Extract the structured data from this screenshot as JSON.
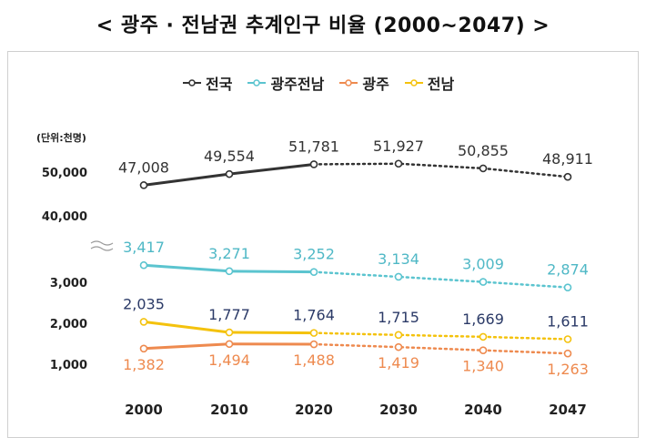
{
  "chart_data": {
    "type": "line",
    "title": "< 광주 · 전남권 추계인구 비율 (2000~2047) >",
    "unit_label": "(단위:천명)",
    "categories": [
      "2000",
      "2010",
      "2020",
      "2030",
      "2040",
      "2047"
    ],
    "y_ticks": [
      "50,000",
      "40,000",
      "3,000",
      "2,000",
      "1,000"
    ],
    "axis_break": true,
    "projection_from": "2020",
    "legend_position": "top",
    "grid": false,
    "series": [
      {
        "name": "전국",
        "color": "#333333",
        "label_color": "#333333",
        "values": [
          47008,
          49554,
          51781,
          51927,
          50855,
          48911
        ],
        "labels": [
          "47,008",
          "49,554",
          "51,781",
          "51,927",
          "50,855",
          "48,911"
        ],
        "label_side": "above"
      },
      {
        "name": "광주전남",
        "color": "#5bc4cf",
        "label_color": "#4fb8c6",
        "values": [
          3417,
          3271,
          3252,
          3134,
          3009,
          2874
        ],
        "labels": [
          "3,417",
          "3,271",
          "3,252",
          "3,134",
          "3,009",
          "2,874"
        ],
        "label_side": "above"
      },
      {
        "name": "광주",
        "color": "#ee8a4f",
        "label_color": "#ee8a4f",
        "values": [
          1382,
          1494,
          1488,
          1419,
          1340,
          1263
        ],
        "labels": [
          "1,382",
          "1,494",
          "1,488",
          "1,419",
          "1,340",
          "1,263"
        ],
        "label_side": "below"
      },
      {
        "name": "전남",
        "color": "#f4c20d",
        "label_color": "#2b3a67",
        "values": [
          2035,
          1777,
          1764,
          1715,
          1669,
          1611
        ],
        "labels": [
          "2,035",
          "1,777",
          "1,764",
          "1,715",
          "1,669",
          "1,611"
        ],
        "label_side": "above"
      }
    ]
  }
}
